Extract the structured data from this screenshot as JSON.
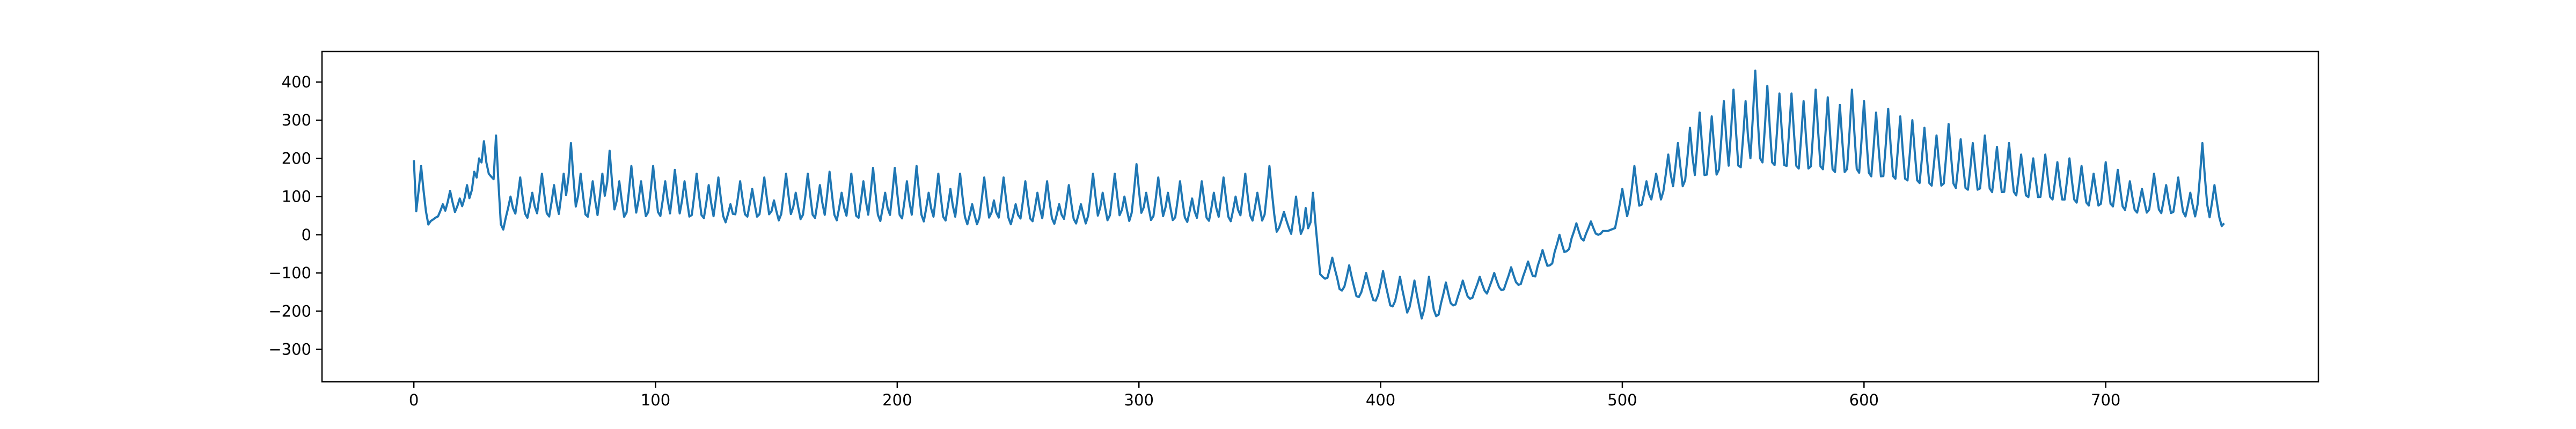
{
  "chart_data": {
    "type": "line",
    "title": "",
    "xlabel": "",
    "ylabel": "",
    "xlim": [
      -38,
      788
    ],
    "ylim": [
      -385,
      480
    ],
    "x_ticks": [
      0,
      100,
      200,
      300,
      400,
      500,
      600,
      700
    ],
    "y_ticks": [
      -300,
      -200,
      -100,
      0,
      100,
      200,
      300,
      400
    ],
    "grid": false,
    "legend": "none",
    "series": [
      {
        "color": "#1f77b4",
        "x_start": 0,
        "x_step": 1,
        "keypoints": [
          [
            0,
            195
          ],
          [
            1,
            20
          ],
          [
            5,
            25
          ],
          [
            10,
            35
          ],
          [
            18,
            45
          ],
          [
            26,
            45
          ],
          [
            30,
            20
          ],
          [
            32,
            -30
          ],
          [
            34,
            -50
          ],
          [
            36,
            10
          ],
          [
            40,
            25
          ],
          [
            60,
            20
          ],
          [
            80,
            15
          ],
          [
            100,
            20
          ],
          [
            120,
            15
          ],
          [
            130,
            15
          ],
          [
            135,
            25
          ],
          [
            150,
            20
          ],
          [
            170,
            15
          ],
          [
            190,
            12
          ],
          [
            210,
            10
          ],
          [
            230,
            10
          ],
          [
            250,
            10
          ],
          [
            270,
            12
          ],
          [
            290,
            15
          ],
          [
            310,
            15
          ],
          [
            330,
            12
          ],
          [
            345,
            15
          ],
          [
            355,
            10
          ],
          [
            360,
            5
          ],
          [
            365,
            -30
          ],
          [
            370,
            -70
          ],
          [
            373,
            -90
          ],
          [
            376,
            -110
          ],
          [
            380,
            -130
          ],
          [
            385,
            -150
          ],
          [
            392,
            -165
          ],
          [
            400,
            -175
          ],
          [
            408,
            -195
          ],
          [
            415,
            -215
          ],
          [
            420,
            -225
          ],
          [
            425,
            -205
          ],
          [
            430,
            -185
          ],
          [
            440,
            -160
          ],
          [
            450,
            -145
          ],
          [
            460,
            -125
          ],
          [
            465,
            -105
          ],
          [
            470,
            -80
          ],
          [
            475,
            -55
          ],
          [
            480,
            -25
          ],
          [
            486,
            -10
          ],
          [
            492,
            5
          ],
          [
            500,
            25
          ],
          [
            506,
            45
          ],
          [
            512,
            65
          ],
          [
            520,
            85
          ],
          [
            530,
            100
          ],
          [
            540,
            110
          ],
          [
            550,
            118
          ],
          [
            556,
            125
          ],
          [
            565,
            120
          ],
          [
            580,
            112
          ],
          [
            600,
            100
          ],
          [
            620,
            90
          ],
          [
            640,
            80
          ],
          [
            660,
            70
          ],
          [
            680,
            60
          ],
          [
            700,
            45
          ],
          [
            720,
            35
          ],
          [
            740,
            25
          ],
          [
            749,
            12
          ]
        ],
        "spikes": [
          [
            3,
            180
          ],
          [
            9,
            45
          ],
          [
            12,
            80
          ],
          [
            15,
            115
          ],
          [
            19,
            95
          ],
          [
            22,
            130
          ],
          [
            25,
            165
          ],
          [
            27,
            200
          ],
          [
            29,
            245
          ],
          [
            31,
            160
          ],
          [
            34,
            260
          ],
          [
            40,
            100
          ],
          [
            44,
            150
          ],
          [
            49,
            110
          ],
          [
            53,
            160
          ],
          [
            58,
            130
          ],
          [
            62,
            160
          ],
          [
            65,
            240
          ],
          [
            69,
            160
          ],
          [
            74,
            140
          ],
          [
            78,
            160
          ],
          [
            81,
            220
          ],
          [
            85,
            140
          ],
          [
            90,
            180
          ],
          [
            94,
            140
          ],
          [
            99,
            180
          ],
          [
            104,
            140
          ],
          [
            108,
            170
          ],
          [
            112,
            140
          ],
          [
            117,
            160
          ],
          [
            122,
            130
          ],
          [
            126,
            150
          ],
          [
            131,
            80
          ],
          [
            135,
            140
          ],
          [
            140,
            120
          ],
          [
            145,
            150
          ],
          [
            149,
            90
          ],
          [
            154,
            160
          ],
          [
            158,
            110
          ],
          [
            163,
            160
          ],
          [
            168,
            130
          ],
          [
            172,
            165
          ],
          [
            177,
            110
          ],
          [
            181,
            160
          ],
          [
            186,
            140
          ],
          [
            190,
            175
          ],
          [
            195,
            110
          ],
          [
            199,
            175
          ],
          [
            204,
            140
          ],
          [
            208,
            180
          ],
          [
            213,
            110
          ],
          [
            217,
            160
          ],
          [
            222,
            120
          ],
          [
            226,
            160
          ],
          [
            231,
            80
          ],
          [
            236,
            150
          ],
          [
            240,
            90
          ],
          [
            244,
            150
          ],
          [
            249,
            80
          ],
          [
            253,
            140
          ],
          [
            258,
            110
          ],
          [
            262,
            140
          ],
          [
            267,
            80
          ],
          [
            271,
            130
          ],
          [
            276,
            80
          ],
          [
            281,
            160
          ],
          [
            285,
            110
          ],
          [
            290,
            160
          ],
          [
            294,
            100
          ],
          [
            299,
            185
          ],
          [
            303,
            110
          ],
          [
            308,
            150
          ],
          [
            312,
            110
          ],
          [
            317,
            140
          ],
          [
            322,
            95
          ],
          [
            326,
            140
          ],
          [
            331,
            110
          ],
          [
            335,
            150
          ],
          [
            340,
            100
          ],
          [
            344,
            160
          ],
          [
            349,
            110
          ],
          [
            354,
            180
          ],
          [
            360,
            60
          ],
          [
            365,
            100
          ],
          [
            369,
            70
          ],
          [
            372,
            110
          ],
          [
            380,
            -60
          ],
          [
            387,
            -80
          ],
          [
            394,
            -100
          ],
          [
            401,
            -95
          ],
          [
            408,
            -110
          ],
          [
            414,
            -120
          ],
          [
            420,
            -110
          ],
          [
            427,
            -125
          ],
          [
            434,
            -120
          ],
          [
            441,
            -110
          ],
          [
            447,
            -100
          ],
          [
            454,
            -85
          ],
          [
            461,
            -70
          ],
          [
            467,
            -40
          ],
          [
            474,
            0
          ],
          [
            481,
            30
          ],
          [
            487,
            35
          ],
          [
            494,
            10
          ],
          [
            500,
            120
          ],
          [
            505,
            180
          ],
          [
            510,
            140
          ],
          [
            514,
            160
          ],
          [
            519,
            210
          ],
          [
            523,
            240
          ],
          [
            528,
            280
          ],
          [
            532,
            320
          ],
          [
            537,
            310
          ],
          [
            542,
            350
          ],
          [
            546,
            380
          ],
          [
            551,
            350
          ],
          [
            555,
            430
          ],
          [
            560,
            390
          ],
          [
            565,
            370
          ],
          [
            570,
            370
          ],
          [
            575,
            350
          ],
          [
            580,
            380
          ],
          [
            585,
            360
          ],
          [
            590,
            340
          ],
          [
            595,
            380
          ],
          [
            600,
            350
          ],
          [
            605,
            320
          ],
          [
            610,
            330
          ],
          [
            615,
            310
          ],
          [
            620,
            300
          ],
          [
            625,
            280
          ],
          [
            630,
            260
          ],
          [
            635,
            290
          ],
          [
            640,
            250
          ],
          [
            645,
            240
          ],
          [
            650,
            260
          ],
          [
            655,
            230
          ],
          [
            660,
            240
          ],
          [
            665,
            210
          ],
          [
            670,
            200
          ],
          [
            675,
            210
          ],
          [
            680,
            190
          ],
          [
            685,
            200
          ],
          [
            690,
            180
          ],
          [
            695,
            160
          ],
          [
            700,
            190
          ],
          [
            705,
            170
          ],
          [
            710,
            140
          ],
          [
            715,
            120
          ],
          [
            720,
            160
          ],
          [
            725,
            130
          ],
          [
            730,
            150
          ],
          [
            735,
            110
          ],
          [
            740,
            240
          ],
          [
            745,
            130
          ],
          [
            749,
            30
          ]
        ]
      }
    ]
  }
}
